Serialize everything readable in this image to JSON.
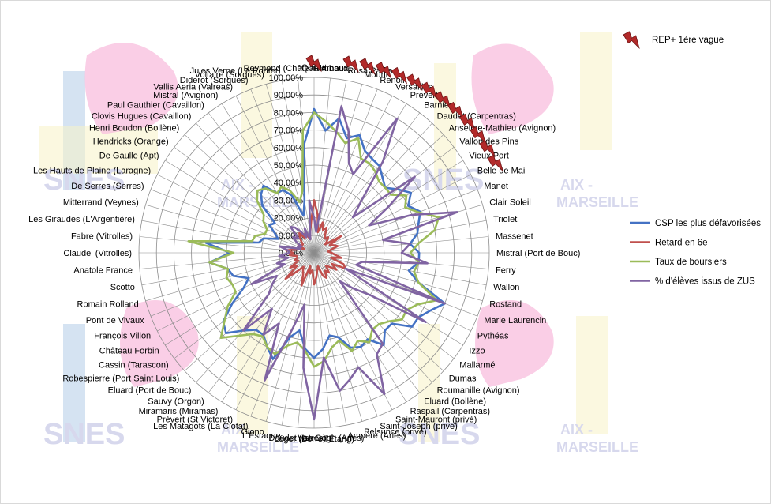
{
  "chart_data": {
    "type": "radar",
    "categories": [
      "Quinet",
      "Rimbaud",
      "Rosa Parks",
      "Mourin",
      "Renoir",
      "Versailles",
      "Prévert",
      "Barnier",
      "Daudet (Carpentras)",
      "Anselme-Mathieu (Avignon)",
      "Vallon des Pins",
      "Vieux Port",
      "Belle de Mai",
      "Manet",
      "Clair Soleil",
      "Triolet",
      "Massenet",
      "Mistral (Port de Bouc)",
      "Ferry",
      "Wallon",
      "Rostand",
      "Marie Laurencin",
      "Pythéas",
      "Izzo",
      "Mallarmé",
      "Dumas",
      "Roumanille (Avignon)",
      "Eluard (Bollène)",
      "Raspail (Carpentras)",
      "Saint-Mauront (privé)",
      "Saint-Joseph (privé)",
      "Belsunce (privé)",
      "Ampère (Arles)",
      "Van Gogh (Arles)",
      "Léger (Berre l'Etang)",
      "Daudet (Istres)",
      "L'Estaque",
      "Giono",
      "Les Matagots (La Ciotat)",
      "Prévert (St Victoret)",
      "Miramaris (Miramas)",
      "Sauvy (Orgon)",
      "Eluard (Port de Bouc)",
      "Robespierre (Port Saint Louis)",
      "Cassin (Tarascon)",
      "Château Forbin",
      "François Villon",
      "Pont de Vivaux",
      "Romain Rolland",
      "Scotto",
      "Anatole France",
      "Claudel (Vitrolles)",
      "Fabre (Vitrolles)",
      "Les Giraudes (L'Argentière)",
      "Mitterrand (Veynes)",
      "De Serres (Serres)",
      "Les Hauts de Plaine (Laragne)",
      "De Gaulle (Apt)",
      "Hendricks (Orange)",
      "Henri Boudon (Bollène)",
      "Clovis Hugues (Cavaillon)",
      "Paul Gauthier (Cavaillon)",
      "Mistral (Avignon)",
      "Vallis Aeria (Valreas)",
      "Diderot (Sorgues)",
      "Voltaire (Sorgues)",
      "Jules Verne (Le Pontet)",
      "Reymond (Château Arnoux)"
    ],
    "rep_plus_count": 13,
    "rmax": 100,
    "tick_labels": [
      "0,00%",
      "10,00%",
      "20,00%",
      "30,00%",
      "40,00%",
      "50,00%",
      "60,00%",
      "70,00%",
      "80,00%",
      "90,00%",
      "100,00%"
    ],
    "grid": true,
    "legend_position": "right",
    "series": [
      {
        "name": "CSP les plus défavorisées",
        "color": "#4472c4",
        "values": [
          82,
          70,
          78,
          68,
          72,
          65,
          63,
          62,
          58,
          55,
          60,
          65,
          60,
          65,
          62,
          60,
          55,
          60,
          60,
          55,
          62,
          80,
          74,
          70,
          70,
          60,
          60,
          66,
          58,
          60,
          58,
          50,
          48,
          55,
          60,
          55,
          45,
          50,
          65,
          60,
          55,
          55,
          60,
          68,
          65,
          55,
          45,
          40,
          48,
          50,
          60,
          48,
          62,
          32,
          30,
          22,
          25,
          30,
          28,
          40,
          45,
          48,
          40,
          40,
          35,
          22,
          30,
          62
        ]
      },
      {
        "name": "Retard en 6e",
        "color": "#c0504d",
        "values": [
          30,
          22,
          12,
          18,
          14,
          16,
          12,
          10,
          12,
          10,
          8,
          18,
          10,
          12,
          14,
          10,
          8,
          10,
          12,
          16,
          10,
          18,
          20,
          12,
          16,
          12,
          10,
          14,
          12,
          16,
          14,
          8,
          10,
          14,
          18,
          10,
          12,
          8,
          20,
          14,
          12,
          10,
          14,
          22,
          12,
          16,
          10,
          12,
          10,
          10,
          14,
          12,
          16,
          10,
          8,
          6,
          10,
          8,
          8,
          10,
          12,
          14,
          10,
          12,
          10,
          8,
          12,
          18
        ]
      },
      {
        "name": "Taux de boursiers",
        "color": "#9bbb59",
        "values": [
          80,
          75,
          70,
          65,
          70,
          60,
          60,
          58,
          55,
          55,
          55,
          62,
          58,
          64,
          74,
          70,
          60,
          55,
          60,
          58,
          62,
          75,
          66,
          62,
          63,
          58,
          55,
          55,
          60,
          56,
          60,
          52,
          55,
          62,
          65,
          56,
          52,
          55,
          62,
          60,
          56,
          58,
          64,
          72,
          64,
          58,
          50,
          50,
          52,
          50,
          60,
          46,
          72,
          36,
          35,
          30,
          30,
          34,
          36,
          44,
          48,
          46,
          40,
          42,
          38,
          30,
          36,
          70
        ]
      },
      {
        "name": "% d'élèves issus de ZUS",
        "color": "#8064a2",
        "values": [
          20,
          12,
          85,
          72,
          55,
          50,
          90,
          65,
          40,
          30,
          72,
          50,
          35,
          60,
          85,
          40,
          55,
          50,
          65,
          28,
          25,
          80,
          20,
          75,
          40,
          30,
          22,
          65,
          68,
          90,
          70,
          75,
          80,
          60,
          95,
          66,
          30,
          45,
          78,
          45,
          55,
          40,
          60,
          35,
          30,
          25,
          40,
          18,
          22,
          15,
          20,
          14,
          15,
          20,
          8,
          10,
          8,
          12,
          15,
          12,
          20,
          18,
          14,
          10,
          15,
          8,
          12,
          30
        ]
      }
    ]
  },
  "legend": {
    "items": [
      {
        "label": "CSP les plus défavorisées",
        "color": "#4472c4"
      },
      {
        "label": "Retard en 6e",
        "color": "#c0504d"
      },
      {
        "label": "Taux de boursiers",
        "color": "#9bbb59"
      },
      {
        "label": "% d'élèves issus de ZUS",
        "color": "#8064a2"
      }
    ],
    "rep_plus_label": "REP+ 1ère vague",
    "rep_plus_color": "#b22a2a"
  },
  "watermark": {
    "org": "SNES",
    "region_line1": "AIX -",
    "region_line2": "MARSEILLE",
    "colors": {
      "pink": "#f06fb4",
      "yellow": "#ece07a",
      "blue": "#4a88c8",
      "lavender": "#a2a4d6"
    }
  }
}
